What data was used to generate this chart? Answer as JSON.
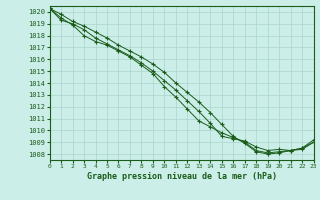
{
  "title": "Graphe pression niveau de la mer (hPa)",
  "bg_color": "#cceee8",
  "grid_color": "#aad4cc",
  "line_color": "#1a5c1a",
  "xlim": [
    0,
    23
  ],
  "ylim": [
    1007.5,
    1020.5
  ],
  "xticks": [
    0,
    1,
    2,
    3,
    4,
    5,
    6,
    7,
    8,
    9,
    10,
    11,
    12,
    13,
    14,
    15,
    16,
    17,
    18,
    19,
    20,
    21,
    22,
    23
  ],
  "yticks": [
    1008,
    1009,
    1010,
    1011,
    1012,
    1013,
    1014,
    1015,
    1016,
    1017,
    1018,
    1019,
    1020
  ],
  "series": [
    [
      1020.3,
      1019.3,
      1019.0,
      1018.5,
      1017.8,
      1017.3,
      1016.8,
      1016.3,
      1015.7,
      1015.0,
      1014.2,
      1013.4,
      1012.5,
      1011.6,
      1010.6,
      1009.5,
      1009.3,
      1009.1,
      1008.6,
      1008.3,
      1008.4,
      1008.3,
      1008.5,
      1009.0
    ],
    [
      1020.3,
      1019.5,
      1018.9,
      1018.0,
      1017.5,
      1017.2,
      1016.7,
      1016.2,
      1015.5,
      1014.8,
      1013.7,
      1012.8,
      1011.8,
      1010.8,
      1010.3,
      1009.8,
      1009.4,
      1009.0,
      1008.3,
      1008.1,
      1008.2,
      1008.3,
      1008.5,
      1009.2
    ],
    [
      1020.3,
      1019.8,
      1019.2,
      1018.8,
      1018.3,
      1017.8,
      1017.2,
      1016.7,
      1016.2,
      1015.6,
      1014.9,
      1014.0,
      1013.2,
      1012.4,
      1011.5,
      1010.5,
      1009.5,
      1008.9,
      1008.2,
      1008.0,
      1008.1,
      1008.3,
      1008.4,
      1009.0
    ]
  ],
  "title_fontsize": 6,
  "tick_fontsize": 5
}
